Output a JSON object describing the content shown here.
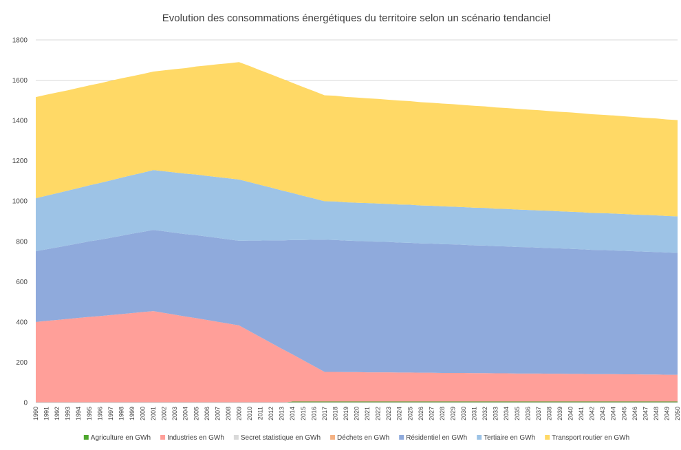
{
  "chart_data": {
    "type": "stacked-area",
    "title": "Evolution des consommations énergétiques du territoire selon un scénario tendanciel",
    "categories": [
      1990,
      1991,
      1992,
      1993,
      1994,
      1995,
      1996,
      1997,
      1998,
      1999,
      2000,
      2001,
      2002,
      2003,
      2004,
      2005,
      2006,
      2007,
      2008,
      2009,
      2010,
      2011,
      2012,
      2013,
      2014,
      2015,
      2016,
      2017,
      2018,
      2019,
      2020,
      2021,
      2022,
      2023,
      2024,
      2025,
      2026,
      2027,
      2028,
      2029,
      2030,
      2031,
      2032,
      2033,
      2034,
      2035,
      2036,
      2037,
      2038,
      2039,
      2040,
      2041,
      2042,
      2043,
      2044,
      2045,
      2046,
      2047,
      2048,
      2049,
      2050
    ],
    "series": [
      {
        "name": "Agriculture en GWh",
        "color": "#4ea72e",
        "values": [
          0,
          0,
          0,
          0,
          0,
          0,
          0,
          0,
          0,
          0,
          0,
          0,
          0,
          0,
          0,
          0,
          0,
          0,
          0,
          0,
          0,
          0,
          0,
          0,
          5,
          5,
          5,
          5,
          5,
          5,
          5,
          5,
          5,
          5,
          5,
          5,
          5,
          5,
          5,
          5,
          5,
          5,
          5,
          5,
          5,
          5,
          5,
          5,
          5,
          5,
          5,
          5,
          5,
          5,
          5,
          5,
          5,
          5,
          5,
          5,
          5
        ]
      },
      {
        "name": "Industries en GWh",
        "color": "#ff9f99",
        "values": [
          400,
          405,
          410,
          415,
          420,
          425,
          429,
          434,
          439,
          444,
          449,
          454,
          445,
          436,
          427,
          419,
          410,
          401,
          392,
          383,
          354,
          325,
          296,
          267,
          234,
          205,
          176,
          147,
          147,
          146,
          146,
          145,
          145,
          145,
          144,
          144,
          143,
          143,
          142,
          142,
          142,
          141,
          141,
          140,
          140,
          139,
          139,
          139,
          138,
          138,
          137,
          137,
          136,
          136,
          136,
          135,
          135,
          134,
          134,
          133,
          133
        ]
      },
      {
        "name": "Secret statistique en GWh",
        "color": "#d9d9d9",
        "values": [
          0,
          0,
          0,
          0,
          0,
          0,
          0,
          0,
          0,
          0,
          0,
          0,
          0,
          0,
          0,
          0,
          0,
          0,
          0,
          0,
          0,
          0,
          0,
          0,
          0,
          0,
          0,
          0,
          0,
          0,
          0,
          0,
          0,
          0,
          0,
          0,
          0,
          0,
          0,
          0,
          0,
          0,
          0,
          0,
          0,
          0,
          0,
          0,
          0,
          0,
          0,
          0,
          0,
          0,
          0,
          0,
          0,
          0,
          0,
          0,
          0
        ]
      },
      {
        "name": "Déchets en GWh",
        "color": "#f4b183",
        "values": [
          0,
          0,
          0,
          0,
          0,
          0,
          0,
          0,
          0,
          0,
          0,
          0,
          0,
          0,
          0,
          0,
          0,
          0,
          0,
          0,
          0,
          0,
          0,
          0,
          0,
          0,
          0,
          0,
          0,
          0,
          0,
          0,
          0,
          0,
          0,
          0,
          0,
          0,
          0,
          0,
          0,
          0,
          0,
          0,
          0,
          0,
          0,
          0,
          0,
          0,
          0,
          0,
          0,
          0,
          0,
          0,
          0,
          0,
          0,
          0,
          0
        ]
      },
      {
        "name": "Résidentiel en GWh",
        "color": "#8faadc",
        "values": [
          351,
          356,
          360,
          365,
          370,
          375,
          379,
          384,
          389,
          394,
          398,
          403,
          405,
          407,
          409,
          412,
          414,
          416,
          418,
          420,
          450,
          479,
          509,
          538,
          568,
          597,
          627,
          656,
          655,
          653,
          651,
          650,
          648,
          647,
          645,
          644,
          642,
          641,
          639,
          638,
          636,
          634,
          633,
          631,
          630,
          628,
          627,
          625,
          624,
          622,
          621,
          619,
          617,
          616,
          614,
          613,
          611,
          610,
          608,
          607,
          605
        ]
      },
      {
        "name": "Tertiaire en GWh",
        "color": "#9dc3e6",
        "values": [
          263,
          266,
          269,
          272,
          275,
          278,
          282,
          285,
          288,
          291,
          294,
          297,
          298,
          299,
          300,
          301,
          301,
          302,
          303,
          304,
          290,
          276,
          262,
          248,
          233,
          219,
          205,
          191,
          191,
          190,
          190,
          190,
          190,
          189,
          189,
          189,
          188,
          188,
          188,
          187,
          187,
          187,
          187,
          186,
          186,
          186,
          185,
          185,
          185,
          184,
          184,
          184,
          183,
          183,
          183,
          183,
          182,
          182,
          182,
          181,
          181
        ]
      },
      {
        "name": "Transport routier en GWh",
        "color": "#ffd966",
        "values": [
          502,
          501,
          500,
          498,
          497,
          496,
          495,
          494,
          493,
          491,
          490,
          489,
          501,
          513,
          524,
          536,
          548,
          560,
          571,
          583,
          576,
          569,
          562,
          555,
          547,
          540,
          533,
          526,
          525,
          523,
          522,
          520,
          519,
          517,
          516,
          514,
          513,
          511,
          510,
          509,
          507,
          506,
          504,
          503,
          501,
          500,
          498,
          497,
          495,
          494,
          493,
          491,
          490,
          488,
          487,
          485,
          484,
          482,
          481,
          479,
          478
        ]
      }
    ],
    "ylim": [
      0,
      1800
    ],
    "yticks": [
      0,
      200,
      400,
      600,
      800,
      1000,
      1200,
      1400,
      1600,
      1800
    ],
    "grid": true
  }
}
